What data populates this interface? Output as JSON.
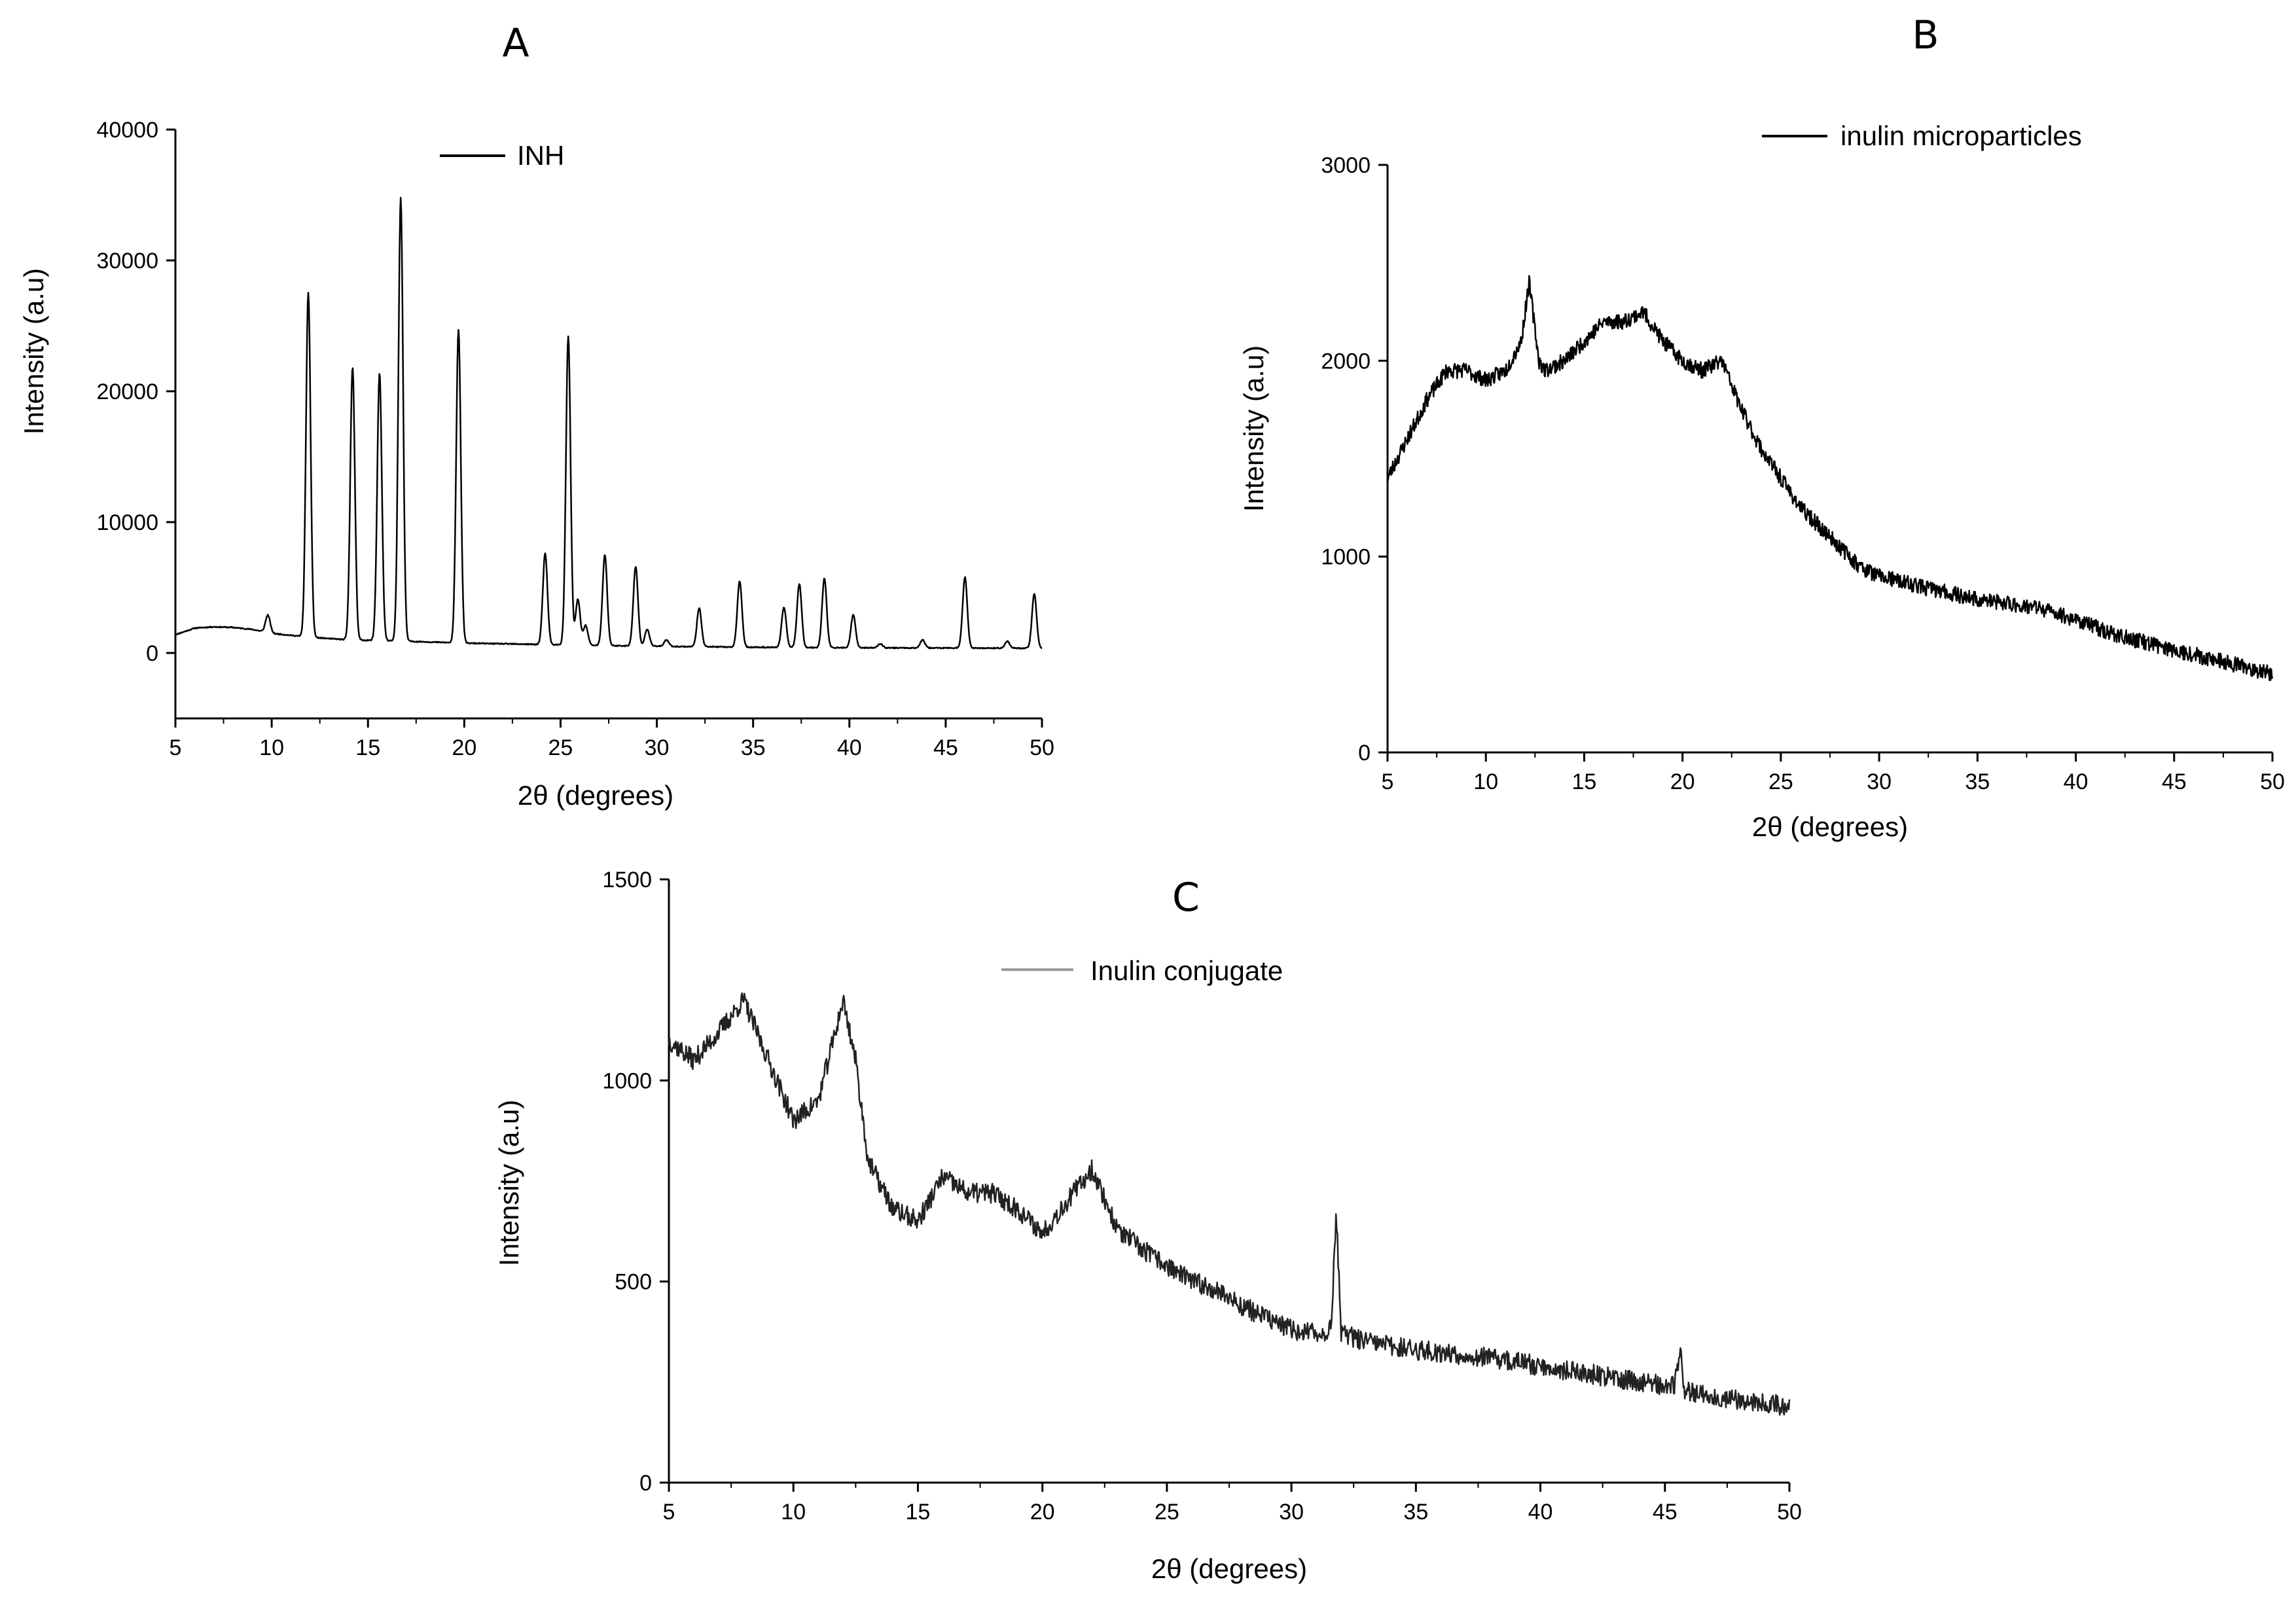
{
  "chart_data": [
    {
      "panel": "A",
      "type": "line",
      "title": "A",
      "xlabel": "2θ (degrees)",
      "ylabel": "Intensity (a.u)",
      "xlim": [
        5,
        50
      ],
      "ylim": [
        -5000,
        40000
      ],
      "xticks": [
        5,
        10,
        15,
        20,
        25,
        30,
        35,
        40,
        45,
        50
      ],
      "yticks": [
        0,
        10000,
        20000,
        30000,
        40000
      ],
      "legend": "top-center",
      "series": [
        {
          "name": "INH",
          "color": "#000000",
          "baseline": [
            [
              5,
              1400
            ],
            [
              6,
              1900
            ],
            [
              7,
              2000
            ],
            [
              8,
              1950
            ],
            [
              9,
              1800
            ],
            [
              10,
              1500
            ],
            [
              12,
              1200
            ],
            [
              14,
              1000
            ],
            [
              17,
              900
            ],
            [
              20,
              750
            ],
            [
              24,
              650
            ],
            [
              28,
              550
            ],
            [
              32,
              480
            ],
            [
              36,
              430
            ],
            [
              40,
              400
            ],
            [
              45,
              380
            ],
            [
              50,
              360
            ]
          ],
          "peaks": [
            {
              "x": 9.8,
              "y": 2900
            },
            {
              "x": 11.9,
              "y": 27500
            },
            {
              "x": 14.2,
              "y": 21800
            },
            {
              "x": 15.6,
              "y": 21400
            },
            {
              "x": 16.7,
              "y": 34800
            },
            {
              "x": 19.7,
              "y": 24700
            },
            {
              "x": 24.2,
              "y": 7600
            },
            {
              "x": 25.4,
              "y": 24200
            },
            {
              "x": 25.9,
              "y": 4100
            },
            {
              "x": 26.3,
              "y": 2100
            },
            {
              "x": 27.3,
              "y": 7500
            },
            {
              "x": 28.9,
              "y": 6600
            },
            {
              "x": 29.5,
              "y": 1800
            },
            {
              "x": 30.5,
              "y": 1000
            },
            {
              "x": 32.2,
              "y": 3400
            },
            {
              "x": 34.3,
              "y": 5500
            },
            {
              "x": 36.6,
              "y": 3500
            },
            {
              "x": 37.4,
              "y": 5300
            },
            {
              "x": 38.7,
              "y": 5700
            },
            {
              "x": 40.2,
              "y": 2900
            },
            {
              "x": 41.6,
              "y": 700
            },
            {
              "x": 43.8,
              "y": 1000
            },
            {
              "x": 46.0,
              "y": 5800
            },
            {
              "x": 48.2,
              "y": 900
            },
            {
              "x": 49.6,
              "y": 4500
            }
          ]
        }
      ]
    },
    {
      "panel": "B",
      "type": "line",
      "title": "B",
      "xlabel": "2θ (degrees)",
      "ylabel": "Intensity (a.u)",
      "xlim": [
        5,
        50
      ],
      "ylim": [
        0,
        3000
      ],
      "xticks": [
        5,
        10,
        15,
        20,
        25,
        30,
        35,
        40,
        45,
        50
      ],
      "yticks": [
        0,
        1000,
        2000,
        3000
      ],
      "legend": "top-right",
      "series": [
        {
          "name": "inulin microparticles",
          "color": "#000000",
          "envelope": [
            [
              5,
              1400
            ],
            [
              6,
              1600
            ],
            [
              7,
              1800
            ],
            [
              8,
              1950
            ],
            [
              9,
              1950
            ],
            [
              10,
              1900
            ],
            [
              11,
              1950
            ],
            [
              11.8,
              2100
            ],
            [
              12.2,
              2400
            ],
            [
              12.7,
              2000
            ],
            [
              13,
              1950
            ],
            [
              14,
              2000
            ],
            [
              15,
              2100
            ],
            [
              16,
              2200
            ],
            [
              17,
              2200
            ],
            [
              18,
              2250
            ],
            [
              19,
              2100
            ],
            [
              20,
              2000
            ],
            [
              21,
              1950
            ],
            [
              22,
              2000
            ],
            [
              23,
              1750
            ],
            [
              24,
              1550
            ],
            [
              25,
              1400
            ],
            [
              26,
              1250
            ],
            [
              27,
              1150
            ],
            [
              28,
              1050
            ],
            [
              29,
              950
            ],
            [
              30,
              900
            ],
            [
              32,
              850
            ],
            [
              35,
              780
            ],
            [
              38,
              740
            ],
            [
              40,
              680
            ],
            [
              42,
              600
            ],
            [
              44,
              550
            ],
            [
              46,
              500
            ],
            [
              48,
              450
            ],
            [
              50,
              400
            ]
          ],
          "noise": 40
        }
      ]
    },
    {
      "panel": "C",
      "type": "line",
      "title": "C",
      "xlabel": "2θ (degrees)",
      "ylabel": "Intensity (a.u)",
      "xlim": [
        5,
        50
      ],
      "ylim": [
        0,
        1500
      ],
      "xticks": [
        5,
        10,
        15,
        20,
        25,
        30,
        35,
        40,
        45,
        50
      ],
      "yticks": [
        0,
        500,
        1000,
        1500
      ],
      "legend": "top-center",
      "series": [
        {
          "name": "Inulin conjugate",
          "color": "#999999",
          "envelope": [
            [
              5,
              1100
            ],
            [
              6,
              1050
            ],
            [
              7,
              1120
            ],
            [
              8,
              1200
            ],
            [
              9,
              1050
            ],
            [
              10,
              900
            ],
            [
              11,
              950
            ],
            [
              12,
              1200
            ],
            [
              12.5,
              1050
            ],
            [
              13,
              800
            ],
            [
              14,
              680
            ],
            [
              15,
              650
            ],
            [
              16,
              760
            ],
            [
              17,
              720
            ],
            [
              18,
              720
            ],
            [
              19,
              680
            ],
            [
              20,
              620
            ],
            [
              21,
              700
            ],
            [
              22,
              780
            ],
            [
              23,
              630
            ],
            [
              24,
              580
            ],
            [
              25,
              540
            ],
            [
              26,
              500
            ],
            [
              27,
              480
            ],
            [
              28,
              440
            ],
            [
              29,
              410
            ],
            [
              30,
              380
            ],
            [
              31,
              370
            ],
            [
              31.6,
              380
            ],
            [
              31.8,
              680
            ],
            [
              32,
              370
            ],
            [
              33,
              350
            ],
            [
              35,
              330
            ],
            [
              38,
              310
            ],
            [
              40,
              290
            ],
            [
              42,
              270
            ],
            [
              44,
              250
            ],
            [
              45.4,
              240
            ],
            [
              45.6,
              330
            ],
            [
              45.8,
              230
            ],
            [
              47,
              215
            ],
            [
              50,
              190
            ]
          ],
          "noise": 25
        }
      ]
    }
  ]
}
